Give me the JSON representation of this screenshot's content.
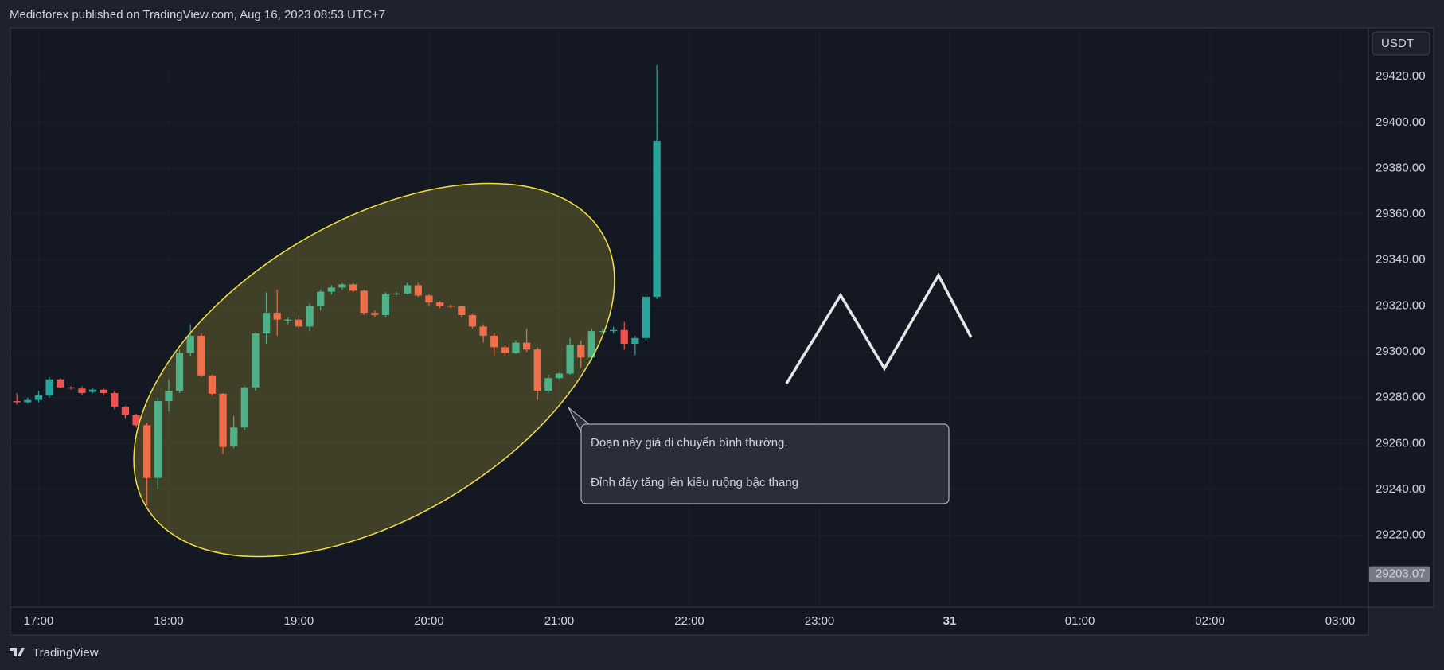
{
  "header": "Medioforex published on TradingView.com, Aug 16, 2023 08:53 UTC+7",
  "footer": "TradingView",
  "chart_data": {
    "type": "candlestick",
    "currency": "USDT",
    "up_color": "#26a69a",
    "down_color": "#ef5350",
    "x": [
      1010,
      1015,
      1020,
      1025,
      1030,
      1035,
      1040,
      1045,
      1050,
      1055,
      1060,
      1065,
      1070,
      1075,
      1080,
      1085,
      1090,
      1095,
      1100,
      1105,
      1110,
      1115,
      1120,
      1125,
      1130,
      1135,
      1140,
      1145,
      1150,
      1155,
      1160,
      1165,
      1170,
      1175,
      1180,
      1185,
      1190,
      1195,
      1200,
      1205,
      1210,
      1215,
      1220,
      1225,
      1230,
      1235,
      1240,
      1245,
      1250,
      1255,
      1260,
      1265,
      1270,
      1275,
      1280,
      1285,
      1290,
      1295,
      1300,
      1305
    ],
    "open": [
      29278.5,
      29278,
      29279,
      29281,
      29288,
      29284.5,
      29284,
      29282.5,
      29283.5,
      29282,
      29276,
      29272.5,
      29268,
      29245,
      29278.5,
      29283,
      29299.5,
      29307,
      29289.7,
      29281.7,
      29259,
      29267,
      29284.5,
      29308,
      29317,
      29313.5,
      29314,
      29311,
      29320,
      29326.2,
      29328,
      29329.4,
      29326.6,
      29317,
      29316,
      29325,
      29325.4,
      29329,
      29324.5,
      29321.5,
      29320,
      29319.8,
      29316,
      29311,
      29307,
      29302,
      29299.5,
      29304,
      29301,
      29283,
      29288.5,
      29290.5,
      29303,
      29297.5,
      29309,
      29309,
      29309.5,
      29303.5,
      29306,
      29324
    ],
    "high": [
      29282,
      29280,
      29283,
      29289,
      29288.5,
      29285,
      29285,
      29284,
      29284,
      29283,
      29276.5,
      29273,
      29269,
      29280,
      29288,
      29301,
      29312,
      29308,
      29290,
      29282,
      29272,
      29285,
      29308.5,
      29326,
      29327,
      29315,
      29316,
      29321,
      29327,
      29329,
      29330,
      29330,
      29327,
      29318,
      29326,
      29326,
      29330,
      29330,
      29325,
      29322,
      29320.5,
      29320,
      29316.5,
      29312,
      29308,
      29303,
      29305,
      29310,
      29302,
      29290,
      29291,
      29306,
      29305,
      29310,
      29310,
      29311,
      29313,
      29307,
      29325,
      29425
    ],
    "low": [
      29277,
      29277.5,
      29278,
      29280,
      29284,
      29283.5,
      29281,
      29282,
      29281,
      29275,
      29271,
      29267,
      29233,
      29240,
      29274,
      29282,
      29298,
      29289,
      29281,
      29255.5,
      29258,
      29266,
      29283,
      29303.5,
      29307,
      29312,
      29310,
      29309,
      29318,
      29325,
      29327,
      29326,
      29316,
      29315,
      29315,
      29324.5,
      29325,
      29324,
      29320,
      29319,
      29319,
      29315,
      29310,
      29304,
      29298,
      29298,
      29299,
      29300,
      29279,
      29282,
      29288,
      29290,
      29293,
      29296,
      29308,
      29308,
      29301,
      29298.5,
      29305,
      29323
    ],
    "close": [
      29278,
      29279,
      29281,
      29288,
      29284.5,
      29284,
      29282,
      29283.5,
      29282,
      29276,
      29272.5,
      29268,
      29245,
      29278.5,
      29283,
      29299.5,
      29307,
      29289.7,
      29281.7,
      29258.5,
      29267,
      29284.5,
      29308,
      29317,
      29314,
      29314,
      29311,
      29320,
      29326.2,
      29328,
      29329.4,
      29326.6,
      29317,
      29316,
      29325,
      29325.4,
      29329,
      29324.5,
      29321.5,
      29320,
      29319.8,
      29316,
      29311,
      29307,
      29302,
      29299.5,
      29304,
      29301,
      29283,
      29288.5,
      29290.5,
      29303,
      29297.5,
      29309,
      29309,
      29309.5,
      29303.5,
      29306,
      29324,
      29392
    ],
    "last_price": 29203.07,
    "xlim": [
      1007,
      1633
    ],
    "xticks": [
      {
        "value": 1020,
        "label": "17:00"
      },
      {
        "value": 1080,
        "label": "18:00"
      },
      {
        "value": 1140,
        "label": "19:00"
      },
      {
        "value": 1200,
        "label": "20:00"
      },
      {
        "value": 1260,
        "label": "21:00"
      },
      {
        "value": 1320,
        "label": "22:00"
      },
      {
        "value": 1380,
        "label": "23:00"
      },
      {
        "value": 1440,
        "label": "31"
      },
      {
        "value": 1500,
        "label": "01:00"
      },
      {
        "value": 1560,
        "label": "02:00"
      },
      {
        "value": 1620,
        "label": "03:00"
      }
    ],
    "ylim": [
      29188.7,
      29441.2
    ],
    "yticks": [
      {
        "value": 29220,
        "label": "29220.00"
      },
      {
        "value": 29240,
        "label": "29240.00"
      },
      {
        "value": 29260,
        "label": "29260.00"
      },
      {
        "value": 29280,
        "label": "29280.00"
      },
      {
        "value": 29300,
        "label": "29300.00"
      },
      {
        "value": 29320,
        "label": "29320.00"
      },
      {
        "value": 29340,
        "label": "29340.00"
      },
      {
        "value": 29360,
        "label": "29360.00"
      },
      {
        "value": 29380,
        "label": "29380.00"
      },
      {
        "value": 29400,
        "label": "29400.00"
      },
      {
        "value": 29420,
        "label": "29420.00"
      }
    ],
    "annotation": [
      "Đoạn này giá di chuyển bình thường.",
      "Đỉnh đáy tăng lên kiểu ruộng bậc thang"
    ]
  }
}
